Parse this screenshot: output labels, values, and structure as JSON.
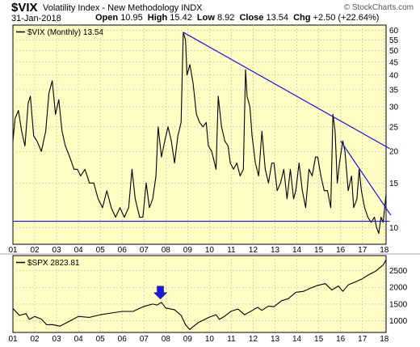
{
  "header": {
    "symbol": "$VIX",
    "name": "Volatility Index - New Methodology",
    "exchange": "INDX",
    "source": "© StockCharts.com",
    "date": "31-Jan-2018",
    "open_label": "Open",
    "open": "10.95",
    "high_label": "High",
    "high": "15.42",
    "low_label": "Low",
    "low": "8.92",
    "close_label": "Close",
    "close": "13.54",
    "chg_label": "Chg",
    "chg": "+2.50 (+22.64%)"
  },
  "colors": {
    "panel_bg": "#fffcc4",
    "price_line": "#000000",
    "trendline": "#1414dc",
    "arrow": "#1a1adc",
    "grid": "#bdbdbd"
  },
  "chart_data": [
    {
      "type": "line",
      "legend": "$VIX (Monthly) 13.54",
      "scale": "log",
      "ylim": [
        8.6,
        63
      ],
      "y_ticks": [
        10,
        15,
        20,
        25,
        30,
        35,
        40,
        45,
        50,
        55,
        60
      ],
      "x_ticks": [
        "01",
        "02",
        "03",
        "04",
        "05",
        "06",
        "07",
        "08",
        "09",
        "10",
        "11",
        "12",
        "13",
        "14",
        "15",
        "16",
        "17",
        "18"
      ],
      "x_range": [
        2001.0,
        2018.083
      ],
      "grid": true,
      "series": [
        {
          "points": [
            [
              2001.0,
              22
            ],
            [
              2001.1,
              27
            ],
            [
              2001.25,
              29
            ],
            [
              2001.4,
              24
            ],
            [
              2001.55,
              21
            ],
            [
              2001.7,
              31
            ],
            [
              2001.8,
              33
            ],
            [
              2001.95,
              23
            ],
            [
              2002.1,
              22
            ],
            [
              2002.3,
              20
            ],
            [
              2002.5,
              24
            ],
            [
              2002.65,
              34
            ],
            [
              2002.8,
              38
            ],
            [
              2002.95,
              28
            ],
            [
              2003.1,
              32
            ],
            [
              2003.25,
              24
            ],
            [
              2003.4,
              21
            ],
            [
              2003.6,
              19
            ],
            [
              2003.8,
              17
            ],
            [
              2003.95,
              17
            ],
            [
              2004.1,
              16
            ],
            [
              2004.3,
              17
            ],
            [
              2004.5,
              15
            ],
            [
              2004.7,
              15
            ],
            [
              2004.9,
              13
            ],
            [
              2005.1,
              12
            ],
            [
              2005.3,
              14
            ],
            [
              2005.5,
              12
            ],
            [
              2005.7,
              11
            ],
            [
              2005.9,
              12
            ],
            [
              2006.1,
              11
            ],
            [
              2006.3,
              12
            ],
            [
              2006.45,
              17
            ],
            [
              2006.6,
              13
            ],
            [
              2006.8,
              11
            ],
            [
              2006.95,
              11
            ],
            [
              2007.1,
              15
            ],
            [
              2007.25,
              12
            ],
            [
              2007.4,
              13
            ],
            [
              2007.55,
              16
            ],
            [
              2007.65,
              25
            ],
            [
              2007.8,
              19
            ],
            [
              2007.95,
              22
            ],
            [
              2008.1,
              25
            ],
            [
              2008.25,
              22
            ],
            [
              2008.4,
              18
            ],
            [
              2008.55,
              23
            ],
            [
              2008.7,
              26
            ],
            [
              2008.8,
              59
            ],
            [
              2008.9,
              55
            ],
            [
              2008.97,
              40
            ],
            [
              2009.1,
              44
            ],
            [
              2009.25,
              37
            ],
            [
              2009.4,
              28
            ],
            [
              2009.55,
              26
            ],
            [
              2009.7,
              25
            ],
            [
              2009.85,
              26
            ],
            [
              2009.95,
              21
            ],
            [
              2010.1,
              20
            ],
            [
              2010.3,
              17
            ],
            [
              2010.4,
              33
            ],
            [
              2010.55,
              25
            ],
            [
              2010.7,
              22
            ],
            [
              2010.85,
              21
            ],
            [
              2010.95,
              18
            ],
            [
              2011.1,
              17
            ],
            [
              2011.25,
              18
            ],
            [
              2011.4,
              16
            ],
            [
              2011.55,
              17
            ],
            [
              2011.65,
              42
            ],
            [
              2011.72,
              33
            ],
            [
              2011.85,
              30
            ],
            [
              2011.95,
              23
            ],
            [
              2012.1,
              18
            ],
            [
              2012.25,
              16
            ],
            [
              2012.4,
              24
            ],
            [
              2012.55,
              17
            ],
            [
              2012.7,
              15
            ],
            [
              2012.85,
              18
            ],
            [
              2012.95,
              18
            ],
            [
              2013.1,
              14
            ],
            [
              2013.25,
              15
            ],
            [
              2013.4,
              17
            ],
            [
              2013.55,
              13
            ],
            [
              2013.7,
              17
            ],
            [
              2013.85,
              13
            ],
            [
              2013.95,
              14
            ],
            [
              2014.1,
              18
            ],
            [
              2014.25,
              14
            ],
            [
              2014.4,
              12
            ],
            [
              2014.55,
              17
            ],
            [
              2014.7,
              16
            ],
            [
              2014.85,
              19
            ],
            [
              2014.95,
              19
            ],
            [
              2015.1,
              16
            ],
            [
              2015.25,
              14
            ],
            [
              2015.4,
              14
            ],
            [
              2015.55,
              12
            ],
            [
              2015.65,
              28
            ],
            [
              2015.75,
              24
            ],
            [
              2015.85,
              15
            ],
            [
              2015.95,
              18
            ],
            [
              2016.1,
              22
            ],
            [
              2016.2,
              20
            ],
            [
              2016.35,
              14
            ],
            [
              2016.5,
              16
            ],
            [
              2016.6,
              12
            ],
            [
              2016.75,
              13
            ],
            [
              2016.85,
              17
            ],
            [
              2016.95,
              14
            ],
            [
              2017.1,
              12
            ],
            [
              2017.25,
              11
            ],
            [
              2017.4,
              10.5
            ],
            [
              2017.55,
              11
            ],
            [
              2017.65,
              10
            ],
            [
              2017.75,
              9.5
            ],
            [
              2017.85,
              11
            ],
            [
              2017.95,
              10.5
            ],
            [
              2018.083,
              13.54
            ]
          ]
        }
      ],
      "trendlines": [
        {
          "from": [
            2008.8,
            59
          ],
          "to": [
            2018.25,
            20.5
          ]
        },
        {
          "from": [
            2016.0,
            22
          ],
          "to": [
            2018.3,
            11.2
          ]
        },
        {
          "from": [
            2001.0,
            10.6
          ],
          "to": [
            2018.25,
            10.6
          ]
        }
      ]
    },
    {
      "type": "line",
      "legend": "$SPX 2823.81",
      "ylim": [
        650,
        2950
      ],
      "y_ticks": [
        1000,
        1500,
        2000,
        2500
      ],
      "x_ticks": [
        "01",
        "02",
        "03",
        "04",
        "05",
        "06",
        "07",
        "08",
        "09",
        "10",
        "11",
        "12",
        "13",
        "14",
        "15",
        "16",
        "17",
        "18"
      ],
      "x_range": [
        2001.0,
        2018.083
      ],
      "grid": true,
      "annotation": {
        "shape": "down-arrow",
        "at": [
          2007.75,
          1550
        ]
      },
      "series": [
        {
          "points": [
            [
              2001.0,
              1366
            ],
            [
              2001.3,
              1160
            ],
            [
              2001.6,
              1211
            ],
            [
              2001.75,
              1040
            ],
            [
              2002.0,
              1130
            ],
            [
              2002.3,
              1050
            ],
            [
              2002.55,
              880
            ],
            [
              2002.8,
              885
            ],
            [
              2003.15,
              840
            ],
            [
              2003.3,
              890
            ],
            [
              2003.6,
              990
            ],
            [
              2004.0,
              1130
            ],
            [
              2004.5,
              1100
            ],
            [
              2005.0,
              1180
            ],
            [
              2005.5,
              1230
            ],
            [
              2006.0,
              1280
            ],
            [
              2006.5,
              1280
            ],
            [
              2007.0,
              1430
            ],
            [
              2007.4,
              1500
            ],
            [
              2007.6,
              1470
            ],
            [
              2007.8,
              1550
            ],
            [
              2008.0,
              1380
            ],
            [
              2008.4,
              1330
            ],
            [
              2008.7,
              1160
            ],
            [
              2008.9,
              880
            ],
            [
              2009.1,
              735
            ],
            [
              2009.2,
              800
            ],
            [
              2009.5,
              950
            ],
            [
              2010.0,
              1110
            ],
            [
              2010.3,
              1180
            ],
            [
              2010.45,
              1040
            ],
            [
              2010.7,
              1140
            ],
            [
              2011.0,
              1290
            ],
            [
              2011.3,
              1350
            ],
            [
              2011.6,
              1180
            ],
            [
              2011.8,
              1250
            ],
            [
              2012.2,
              1400
            ],
            [
              2012.4,
              1310
            ],
            [
              2012.7,
              1440
            ],
            [
              2012.95,
              1420
            ],
            [
              2013.3,
              1600
            ],
            [
              2013.6,
              1660
            ],
            [
              2013.95,
              1850
            ],
            [
              2014.3,
              1880
            ],
            [
              2014.6,
              1970
            ],
            [
              2014.95,
              2060
            ],
            [
              2015.3,
              2110
            ],
            [
              2015.6,
              1920
            ],
            [
              2015.9,
              2040
            ],
            [
              2016.1,
              1880
            ],
            [
              2016.35,
              2070
            ],
            [
              2016.7,
              2170
            ],
            [
              2016.95,
              2240
            ],
            [
              2017.3,
              2380
            ],
            [
              2017.6,
              2480
            ],
            [
              2017.95,
              2670
            ],
            [
              2018.083,
              2823.81
            ]
          ]
        }
      ]
    }
  ]
}
